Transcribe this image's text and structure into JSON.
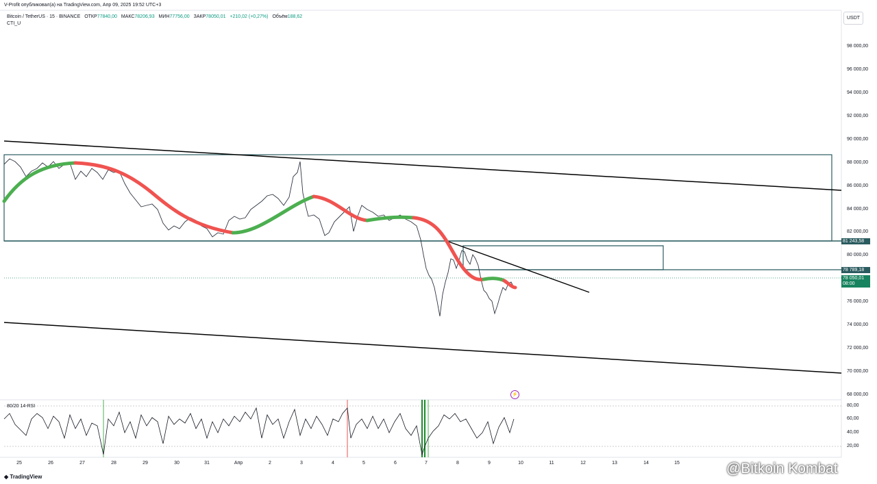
{
  "header": {
    "published": "V-Profit опубликовал(а) на TradingView.com, Апр 09, 2025 19:52 UTC+3"
  },
  "legend": {
    "symbol": "Bitcoin / TetherUS · 15 · BINANCE",
    "open_label": "ОТКР",
    "open": "77840,00",
    "high_label": "МАКС",
    "high": "78206,93",
    "low_label": "МИН",
    "low": "77756,00",
    "close_label": "ЗАКР",
    "close": "78050,01",
    "change": "+210,02 (+0,27%)",
    "volume_label": "Объём",
    "volume": "188,62",
    "indicator": "CTI_U"
  },
  "price_axis": {
    "currency": "USDT",
    "ticks": [
      "98 000,00",
      "96 000,00",
      "94 000,00",
      "92 000,00",
      "90 000,00",
      "88 000,00",
      "86 000,00",
      "84 000,00",
      "82 000,00",
      "80 000,00",
      "76 000,00",
      "74 000,00",
      "72 000,00",
      "70 000,00",
      "68 000,00"
    ],
    "level_upper": "81 243,58",
    "level_lower": "78 789,18",
    "last_price": "78 050,01",
    "countdown": "08:00"
  },
  "time_axis": {
    "ticks": [
      "25",
      "26",
      "27",
      "28",
      "29",
      "30",
      "31",
      "Апр",
      "2",
      "3",
      "4",
      "5",
      "6",
      "7",
      "8",
      "9",
      "10",
      "11",
      "12",
      "13",
      "14",
      "15"
    ]
  },
  "rsi": {
    "label": "80/20 14-RSI",
    "ticks": [
      "80,00",
      "60,00",
      "40,00",
      "20,00"
    ]
  },
  "brand": "TradingView",
  "watermark": "@Bitkoin Kombat",
  "colors": {
    "bull": "#4caf50",
    "bear": "#f05350",
    "zone": "#2a5b5f",
    "last": "#17835f"
  }
}
